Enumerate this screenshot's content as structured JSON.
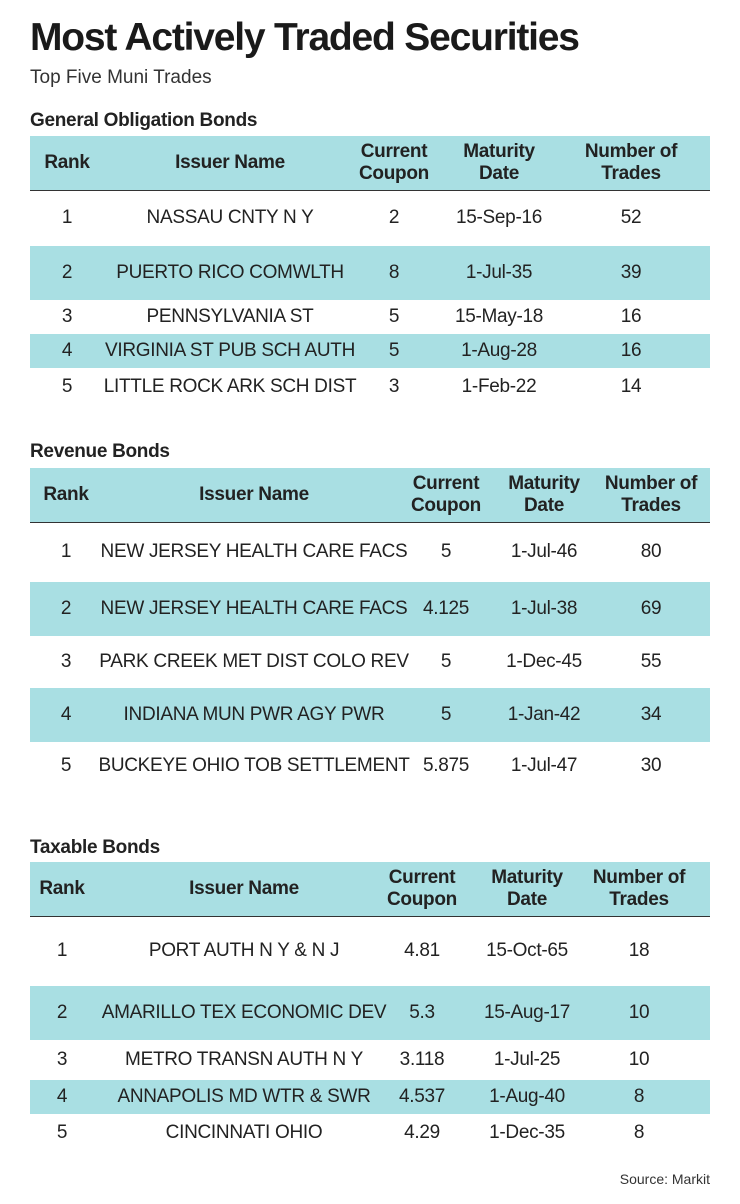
{
  "header": {
    "title": "Most Actively Traded Securities",
    "subtitle": "Top Five Muni Trades"
  },
  "sections": [
    {
      "title": "General Obligation Bonds",
      "columns": [
        "Rank",
        "Issuer Name",
        "Current Coupon",
        "Maturity Date",
        "Number of Trades"
      ],
      "rows": [
        [
          "1",
          "NASSAU CNTY N Y",
          "2",
          "15-Sep-16",
          "52"
        ],
        [
          "2",
          "PUERTO RICO COMWLTH",
          "8",
          "1-Jul-35",
          "39"
        ],
        [
          "3",
          "PENNSYLVANIA ST",
          "5",
          "15-May-18",
          "16"
        ],
        [
          "4",
          "VIRGINIA ST PUB SCH AUTH",
          "5",
          "1-Aug-28",
          "16"
        ],
        [
          "5",
          "LITTLE ROCK ARK SCH DIST",
          "3",
          "1-Feb-22",
          "14"
        ]
      ]
    },
    {
      "title": "Revenue Bonds",
      "columns": [
        "Rank",
        "Issuer Name",
        "Current Coupon",
        "Maturity Date",
        "Number of Trades"
      ],
      "rows": [
        [
          "1",
          "NEW JERSEY HEALTH CARE FACS",
          "5",
          "1-Jul-46",
          "80"
        ],
        [
          "2",
          "NEW JERSEY HEALTH CARE FACS",
          "4.125",
          "1-Jul-38",
          "69"
        ],
        [
          "3",
          "PARK CREEK MET DIST COLO REV",
          "5",
          "1-Dec-45",
          "55"
        ],
        [
          "4",
          "INDIANA MUN PWR AGY PWR",
          "5",
          "1-Jan-42",
          "34"
        ],
        [
          "5",
          "BUCKEYE OHIO TOB SETTLEMENT",
          "5.875",
          "1-Jul-47",
          "30"
        ]
      ]
    },
    {
      "title": "Taxable Bonds",
      "columns": [
        "Rank",
        "Issuer Name",
        "Current Coupon",
        "Maturity Date",
        "Number of Trades"
      ],
      "rows": [
        [
          "1",
          "PORT AUTH N Y & N J",
          "4.81",
          "15-Oct-65",
          "18"
        ],
        [
          "2",
          "AMARILLO TEX ECONOMIC DEV",
          "5.3",
          "15-Aug-17",
          "10"
        ],
        [
          "3",
          "METRO TRANSN AUTH N Y",
          "3.118",
          "1-Jul-25",
          "10"
        ],
        [
          "4",
          "ANNAPOLIS MD WTR & SWR",
          "4.537",
          "1-Aug-40",
          "8"
        ],
        [
          "5",
          "CINCINNATI OHIO",
          "4.29",
          "1-Dec-35",
          "8"
        ]
      ]
    }
  ],
  "footer": {
    "source": "Source: Markit"
  }
}
